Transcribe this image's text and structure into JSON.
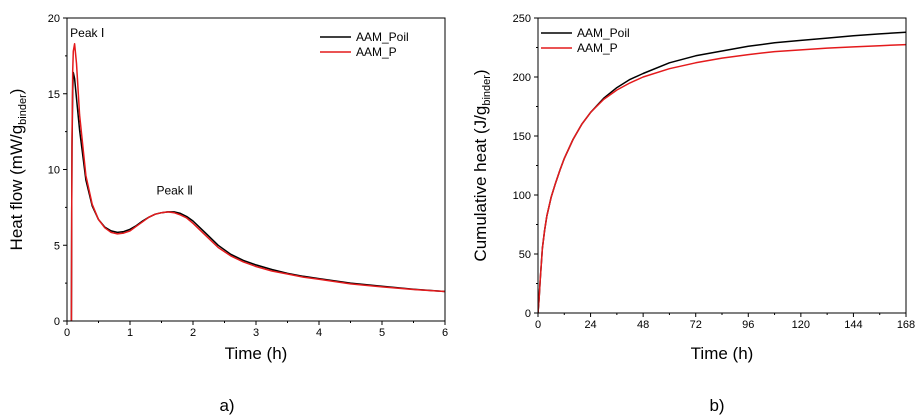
{
  "chart_data": [
    {
      "type": "line",
      "panel_label": "a)",
      "xlabel": "Time (h)",
      "ylabel_main": "Heat flow (mW/g",
      "ylabel_sub": "binder",
      "ylabel_end": ")",
      "xlim": [
        0,
        6
      ],
      "ylim": [
        0,
        20
      ],
      "xticks": [
        0,
        1,
        2,
        3,
        4,
        5,
        6
      ],
      "yticks": [
        0,
        5,
        10,
        15,
        20
      ],
      "legend_position": "top-right",
      "annotations": [
        {
          "text": "Peak Ⅰ",
          "x": 0.05,
          "y": 19.0
        },
        {
          "text": "Peak Ⅱ",
          "x": 1.42,
          "y": 8.6
        }
      ],
      "series": [
        {
          "name": "AAM_Poil",
          "color": "#000000",
          "x": [
            0.07,
            0.075,
            0.08,
            0.09,
            0.1,
            0.12,
            0.15,
            0.2,
            0.3,
            0.4,
            0.5,
            0.6,
            0.7,
            0.8,
            0.9,
            1.0,
            1.1,
            1.2,
            1.3,
            1.4,
            1.5,
            1.6,
            1.7,
            1.8,
            1.9,
            2.0,
            2.2,
            2.4,
            2.6,
            2.8,
            3.0,
            3.25,
            3.5,
            3.75,
            4.0,
            4.5,
            5.0,
            5.5,
            6.0
          ],
          "y": [
            0.0,
            7.0,
            11.5,
            15.2,
            16.4,
            16.0,
            14.7,
            12.6,
            9.3,
            7.6,
            6.7,
            6.2,
            5.95,
            5.85,
            5.9,
            6.05,
            6.3,
            6.6,
            6.85,
            7.05,
            7.15,
            7.2,
            7.2,
            7.1,
            6.9,
            6.6,
            5.8,
            5.0,
            4.4,
            4.0,
            3.7,
            3.4,
            3.15,
            2.95,
            2.8,
            2.5,
            2.3,
            2.1,
            1.95
          ]
        },
        {
          "name": "AAM_P",
          "color": "#e41a1c",
          "x": [
            0.07,
            0.075,
            0.08,
            0.09,
            0.1,
            0.12,
            0.15,
            0.2,
            0.3,
            0.4,
            0.5,
            0.6,
            0.7,
            0.8,
            0.9,
            1.0,
            1.1,
            1.2,
            1.3,
            1.4,
            1.5,
            1.6,
            1.7,
            1.8,
            1.9,
            2.0,
            2.2,
            2.4,
            2.6,
            2.8,
            3.0,
            3.25,
            3.5,
            3.75,
            4.0,
            4.5,
            5.0,
            5.5,
            6.0
          ],
          "y": [
            0.0,
            7.0,
            12.0,
            16.5,
            17.8,
            18.3,
            17.0,
            13.6,
            9.6,
            7.7,
            6.7,
            6.15,
            5.85,
            5.75,
            5.8,
            5.95,
            6.25,
            6.55,
            6.85,
            7.05,
            7.15,
            7.2,
            7.15,
            7.0,
            6.8,
            6.45,
            5.65,
            4.85,
            4.3,
            3.9,
            3.6,
            3.3,
            3.1,
            2.9,
            2.75,
            2.45,
            2.25,
            2.08,
            1.95
          ]
        }
      ]
    },
    {
      "type": "line",
      "panel_label": "b)",
      "xlabel": "Time (h)",
      "ylabel_main": "Cumulative heat (J/g",
      "ylabel_sub": "binder",
      "ylabel_end": ")",
      "xlim": [
        0,
        168
      ],
      "ylim": [
        0,
        250
      ],
      "xticks": [
        0,
        24,
        48,
        72,
        96,
        120,
        144,
        168
      ],
      "yticks": [
        0,
        50,
        100,
        150,
        200,
        250
      ],
      "legend_position": "top-left",
      "series": [
        {
          "name": "AAM_Poil",
          "color": "#000000",
          "x": [
            0,
            0.5,
            1,
            2,
            3,
            4,
            6,
            8,
            10,
            12,
            16,
            20,
            24,
            30,
            36,
            42,
            48,
            60,
            72,
            84,
            96,
            108,
            120,
            132,
            144,
            156,
            168
          ],
          "y": [
            0,
            12,
            28,
            55,
            70,
            82,
            98,
            110,
            121,
            131,
            147,
            160,
            170,
            182,
            191,
            198,
            203,
            212,
            218,
            222,
            226,
            229,
            231,
            233,
            235,
            236.5,
            238
          ]
        },
        {
          "name": "AAM_P",
          "color": "#e41a1c",
          "x": [
            0,
            0.5,
            1,
            2,
            3,
            4,
            6,
            8,
            10,
            12,
            16,
            20,
            24,
            30,
            36,
            42,
            48,
            60,
            72,
            84,
            96,
            108,
            120,
            132,
            144,
            156,
            168
          ],
          "y": [
            0,
            12,
            28,
            55,
            70,
            82,
            98,
            110,
            121,
            131,
            147,
            160,
            170,
            181,
            189,
            195,
            200,
            207,
            212,
            216,
            219,
            221.5,
            223,
            224.5,
            225.5,
            226.5,
            227.5
          ]
        }
      ]
    }
  ]
}
